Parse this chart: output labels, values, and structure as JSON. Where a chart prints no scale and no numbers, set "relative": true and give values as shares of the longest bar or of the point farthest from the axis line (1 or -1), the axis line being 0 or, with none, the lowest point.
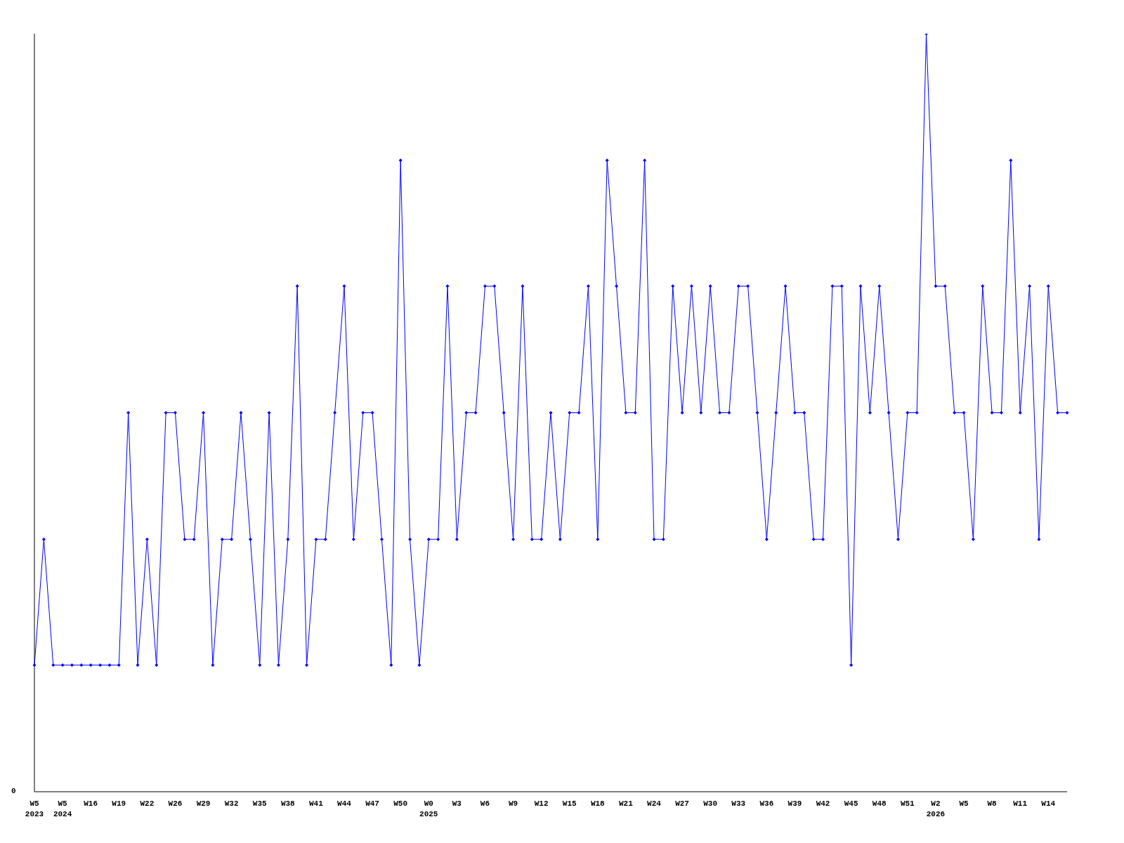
{
  "chart_data": {
    "type": "line",
    "relative": true,
    "annotations": [
      "0"
    ],
    "marker": "diamond",
    "line_style": "solid",
    "grid": false,
    "legend": false,
    "categories": [
      "W5\n2023",
      null,
      null,
      "W5\n2024",
      null,
      null,
      "W16",
      null,
      null,
      "W19",
      null,
      null,
      "W22",
      null,
      null,
      "W26",
      null,
      null,
      "W29",
      null,
      null,
      "W32",
      null,
      null,
      "W35",
      null,
      null,
      "W38",
      null,
      null,
      "W41",
      null,
      null,
      "W44",
      null,
      null,
      "W47",
      null,
      null,
      "W50",
      null,
      null,
      "W0\n2025",
      null,
      null,
      "W3",
      null,
      null,
      "W6",
      null,
      null,
      "W9",
      null,
      null,
      "W12",
      null,
      null,
      "W15",
      null,
      null,
      "W18",
      null,
      null,
      "W21",
      null,
      null,
      "W24",
      null,
      null,
      "W27",
      null,
      null,
      "W30",
      null,
      null,
      "W33",
      null,
      null,
      "W36",
      null,
      null,
      "W39",
      null,
      null,
      "W42",
      null,
      null,
      "W45",
      null,
      null,
      "W48",
      null,
      null,
      "W51",
      null,
      null,
      "W2\n2026",
      null,
      null,
      "W5",
      null,
      null,
      "W8",
      null,
      null,
      "W11",
      null,
      null,
      "W14",
      null,
      null
    ],
    "series": [
      {
        "color": "#0000ff",
        "values": [
          0.167,
          0.333,
          0.167,
          0.167,
          0.167,
          0.167,
          0.167,
          0.167,
          0.167,
          0.167,
          0.5,
          0.167,
          0.333,
          0.167,
          0.5,
          0.5,
          0.333,
          0.333,
          0.5,
          0.167,
          0.333,
          0.333,
          0.5,
          0.333,
          0.167,
          0.5,
          0.167,
          0.333,
          0.667,
          0.167,
          0.333,
          0.333,
          0.5,
          0.667,
          0.333,
          0.5,
          0.5,
          0.333,
          0.167,
          0.833,
          0.333,
          0.167,
          0.333,
          0.333,
          0.667,
          0.333,
          0.5,
          0.5,
          0.667,
          0.667,
          0.5,
          0.333,
          0.667,
          0.333,
          0.333,
          0.5,
          0.333,
          0.5,
          0.5,
          0.667,
          0.333,
          0.833,
          0.667,
          0.5,
          0.5,
          0.833,
          0.333,
          0.333,
          0.667,
          0.5,
          0.667,
          0.5,
          0.667,
          0.5,
          0.5,
          0.667,
          0.667,
          0.5,
          0.333,
          0.5,
          0.667,
          0.5,
          0.5,
          0.333,
          0.333,
          0.667,
          0.667,
          0.167,
          0.667,
          0.5,
          0.667,
          0.5,
          0.333,
          0.5,
          0.5,
          1,
          0.667,
          0.667,
          0.5,
          0.5,
          0.333,
          0.667,
          0.5,
          0.5,
          0.833,
          0.5,
          0.667,
          0.333,
          0.667,
          0.5,
          0.5
        ]
      }
    ]
  }
}
